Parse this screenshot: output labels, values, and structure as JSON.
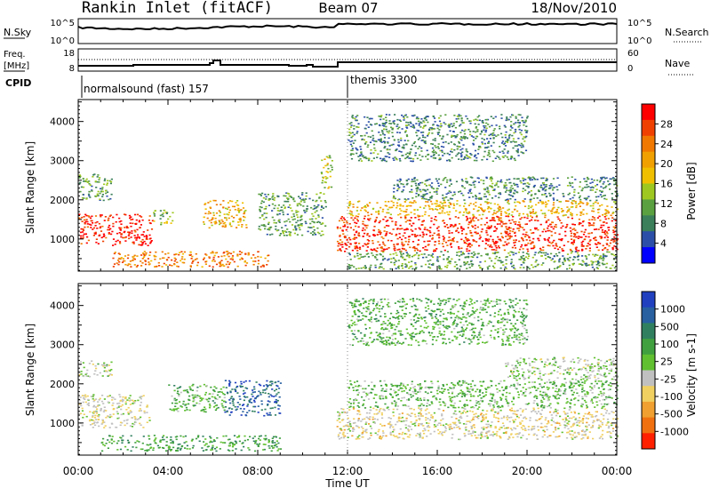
{
  "header": {
    "station": "Rankin Inlet (fitACF)",
    "beam": "Beam 07",
    "date": "18/Nov/2010"
  },
  "top_panels": {
    "nsky_label": "N.Sky",
    "nsky_ticks": [
      "10^5",
      "10^0"
    ],
    "nsearch_label": "N.Search",
    "nsearch_ticks": [
      "10^5",
      "10^0"
    ],
    "freq_label_1": "Freq.",
    "freq_label_2": "[MHz]",
    "freq_ticks": [
      "18",
      "8"
    ],
    "nave_label": "Nave",
    "nave_ticks": [
      "60",
      "0"
    ],
    "cpid_label": "CPID",
    "cpid_segments": [
      {
        "name": "normalsound (fast) 157",
        "start_hour": 0,
        "end_hour": 12
      },
      {
        "name": "themis 3300",
        "start_hour": 12,
        "end_hour": 24
      }
    ]
  },
  "chart_data": [
    {
      "type": "heatmap",
      "title": "Power",
      "xlabel": "Time UT",
      "ylabel": "Slant Range [km]",
      "x_ticks": [
        "00:00",
        "04:00",
        "08:00",
        "12:00",
        "16:00",
        "20:00",
        "00:00"
      ],
      "xlim_hours": [
        0,
        24
      ],
      "y_ticks": [
        1000,
        2000,
        3000,
        4000
      ],
      "ylim_km": [
        180,
        4560
      ],
      "colorbar": {
        "label": "Power [dB]",
        "ticks": [
          "4",
          "8",
          "12",
          "16",
          "20",
          "24",
          "28"
        ],
        "range": [
          0,
          30
        ],
        "colors": [
          "#0000ff",
          "#2b4fa8",
          "#3a7f5a",
          "#5aa040",
          "#9ec820",
          "#f0c000",
          "#f0a000",
          "#f07800",
          "#f04000",
          "#ff0000"
        ]
      },
      "regions": [
        {
          "t0": 0.0,
          "t1": 3.3,
          "r0": 850,
          "r1": 1650,
          "value": 28
        },
        {
          "t0": 3.3,
          "t1": 4.2,
          "r0": 1350,
          "r1": 1750,
          "value": 12
        },
        {
          "t0": 1.5,
          "t1": 8.5,
          "r0": 300,
          "r1": 700,
          "value": 22
        },
        {
          "t0": 5.5,
          "t1": 7.5,
          "r0": 1300,
          "r1": 2000,
          "value": 18
        },
        {
          "t0": 8.0,
          "t1": 11.0,
          "r0": 1100,
          "r1": 2200,
          "value": 10
        },
        {
          "t0": 10.8,
          "t1": 11.3,
          "r0": 2300,
          "r1": 3200,
          "value": 14
        },
        {
          "t0": 11.5,
          "t1": 24.0,
          "r0": 700,
          "r1": 1600,
          "value": 27
        },
        {
          "t0": 12.0,
          "t1": 24.0,
          "r0": 1600,
          "r1": 2000,
          "value": 18
        },
        {
          "t0": 14.0,
          "t1": 24.0,
          "r0": 2000,
          "r1": 2600,
          "value": 8
        },
        {
          "t0": 12.0,
          "t1": 24.0,
          "r0": 250,
          "r1": 700,
          "value": 10
        },
        {
          "t0": 0.0,
          "t1": 1.5,
          "r0": 2000,
          "r1": 2700,
          "value": 10
        },
        {
          "t0": 12.0,
          "t1": 20.0,
          "r0": 3000,
          "r1": 4200,
          "value": 8
        }
      ]
    },
    {
      "type": "heatmap",
      "title": "Velocity",
      "xlabel": "Time UT",
      "ylabel": "Slant Range [km]",
      "x_ticks": [
        "00:00",
        "04:00",
        "08:00",
        "12:00",
        "16:00",
        "20:00",
        "00:00"
      ],
      "xlim_hours": [
        0,
        24
      ],
      "y_ticks": [
        1000,
        2000,
        3000,
        4000
      ],
      "ylim_km": [
        180,
        4560
      ],
      "colorbar": {
        "label": "Velocity [m s-1]",
        "ticks": [
          "1000",
          "500",
          "100",
          "25",
          "-25",
          "-100",
          "-500",
          "-1000"
        ],
        "range": [
          -1000,
          1000
        ],
        "colors": [
          "#2040c0",
          "#2860a0",
          "#308060",
          "#40a040",
          "#60c030",
          "#c0c0c0",
          "#f0d060",
          "#f0a030",
          "#f07010",
          "#ff2000"
        ]
      },
      "regions": [
        {
          "t0": 0.0,
          "t1": 3.2,
          "r0": 900,
          "r1": 1750,
          "value": -150
        },
        {
          "t0": 1.0,
          "t1": 9.0,
          "r0": 300,
          "r1": 700,
          "value": 300
        },
        {
          "t0": 6.5,
          "t1": 9.0,
          "r0": 1200,
          "r1": 2100,
          "value": 700
        },
        {
          "t0": 4.0,
          "t1": 6.5,
          "r0": 1300,
          "r1": 2000,
          "value": 200
        },
        {
          "t0": 11.5,
          "t1": 24.0,
          "r0": 600,
          "r1": 1400,
          "value": -200
        },
        {
          "t0": 12.0,
          "t1": 24.0,
          "r0": 1400,
          "r1": 2100,
          "value": 150
        },
        {
          "t0": 19.0,
          "t1": 24.0,
          "r0": 2100,
          "r1": 2700,
          "value": 0
        },
        {
          "t0": 0.0,
          "t1": 1.5,
          "r0": 2200,
          "r1": 2600,
          "value": 0
        },
        {
          "t0": 12.0,
          "t1": 20.0,
          "r0": 3000,
          "r1": 4200,
          "value": 200
        }
      ]
    }
  ]
}
